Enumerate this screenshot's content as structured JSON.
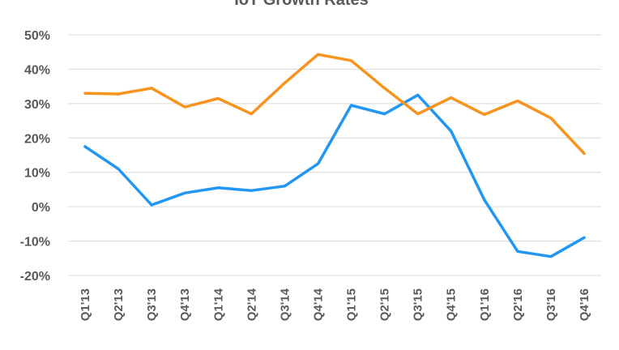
{
  "chart_data": {
    "type": "line",
    "title": "IoT Growth Rates",
    "xlabel": "",
    "ylabel": "",
    "categories": [
      "Q1'13",
      "Q2'13",
      "Q3'13",
      "Q4'13",
      "Q1'14",
      "Q2'14",
      "Q3'14",
      "Q4'14",
      "Q1'15",
      "Q2'15",
      "Q3'15",
      "Q4'15",
      "Q1'16",
      "Q2'16",
      "Q3'16",
      "Q4'16"
    ],
    "ylim": [
      -20,
      50
    ],
    "yticks": [
      "50%",
      "40%",
      "30%",
      "20%",
      "10%",
      "0%",
      "-10%",
      "-20%"
    ],
    "ytick_values": [
      50,
      40,
      30,
      20,
      10,
      0,
      -10,
      -20
    ],
    "grid": true,
    "legend_position": "bottom",
    "series": [
      {
        "name": "",
        "color": "#2196F3",
        "values": [
          17.5,
          11,
          0.5,
          4,
          5.5,
          4.7,
          6,
          12.5,
          29.5,
          27,
          32.5,
          22,
          2,
          -13,
          -14.5,
          -9
        ]
      },
      {
        "name": "",
        "color": "#F7931E",
        "values": [
          33,
          32.8,
          34.5,
          29,
          31.5,
          27,
          36,
          44.3,
          42.5,
          34.5,
          27,
          31.7,
          26.8,
          30.8,
          25.8,
          15.5
        ]
      }
    ]
  }
}
